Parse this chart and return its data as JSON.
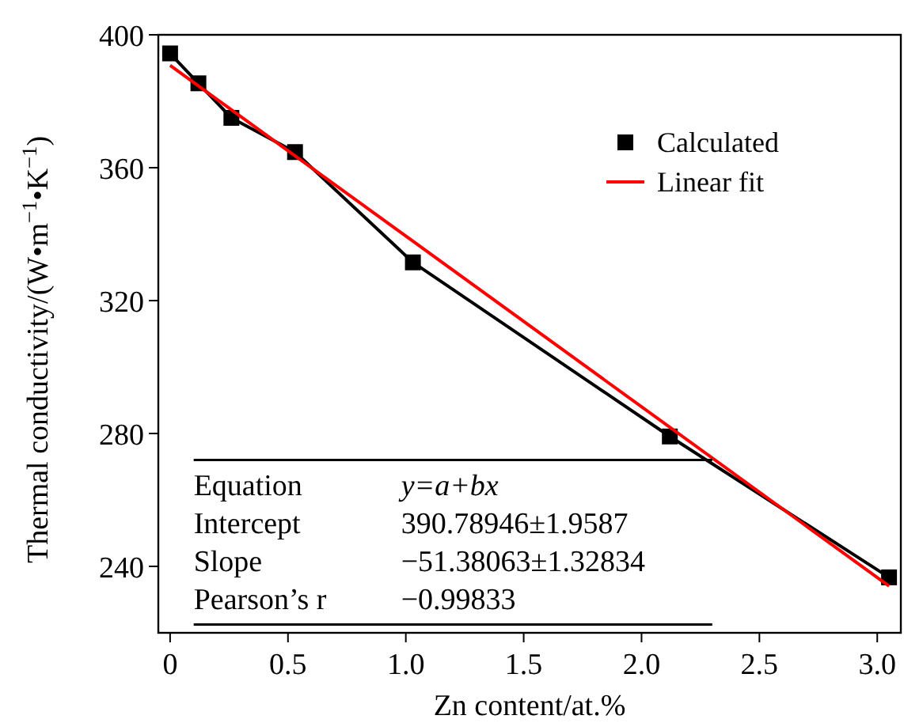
{
  "chart_data": {
    "type": "line",
    "xlabel": "Zn content/at.%",
    "ylabel": "Thermal conductivity/(W•m$^{−1}$•K$^{−1}$)",
    "xlim": [
      -0.05,
      3.1
    ],
    "ylim": [
      220,
      400
    ],
    "xticks": [
      0,
      0.5,
      {
        "value": 1,
        "label": "1.0"
      },
      1.5,
      {
        "value": 2,
        "label": "2.0"
      },
      2.5,
      {
        "value": 3,
        "label": "3.0"
      }
    ],
    "yticks": [
      240,
      280,
      320,
      360,
      400
    ],
    "grid": false,
    "legend": "top right",
    "series": [
      {
        "name": "Calculated",
        "color": "#000000",
        "marker": "square",
        "x": [
          0,
          0.12,
          0.26,
          0.53,
          1.03,
          2.12,
          3.05
        ],
        "values": [
          394.4,
          385.4,
          375,
          364.7,
          331.5,
          279.1,
          236.7
        ]
      },
      {
        "name": "Linear fit",
        "color": "#ff0000",
        "marker": "none",
        "x": [
          0,
          3.05
        ],
        "values": [
          390.8,
          234.1
        ]
      }
    ],
    "annotations": [
      "Equation",
      "y=a+bx",
      "Intercept",
      "390.78946±1.9587",
      "Slope",
      "−51.38063±1.32834",
      "Pearson’s r",
      "−0.99833"
    ]
  }
}
